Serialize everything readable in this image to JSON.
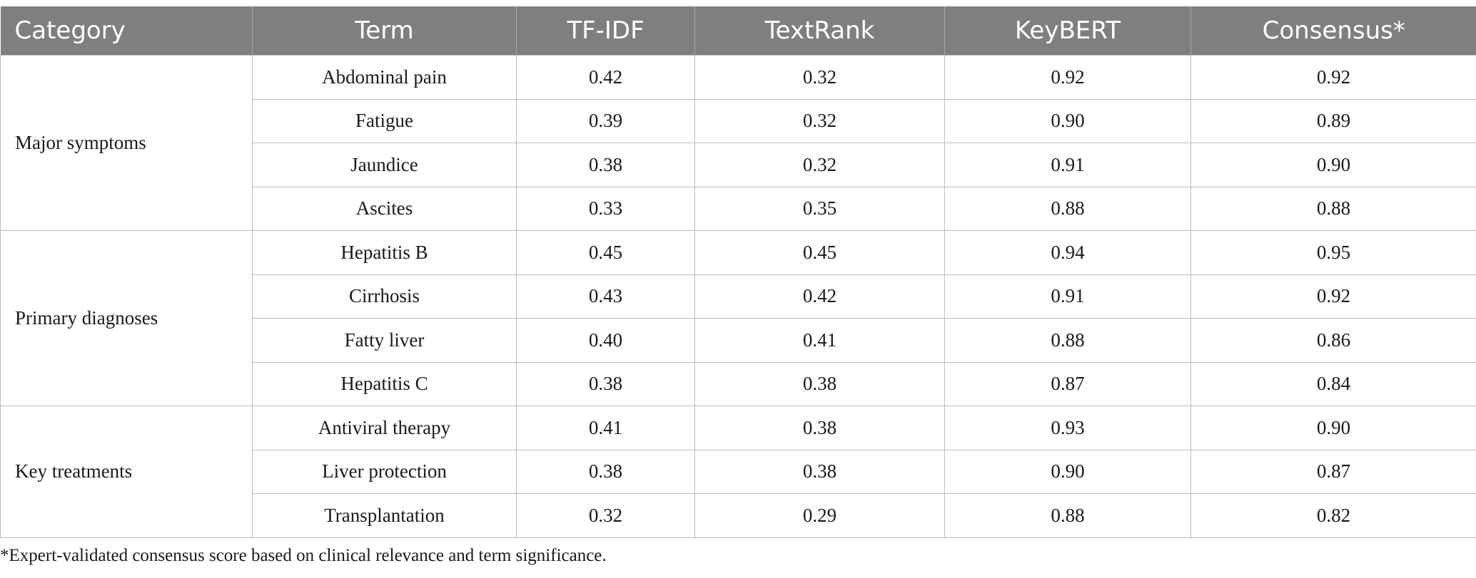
{
  "table": {
    "headers": [
      "Category",
      "Term",
      "TF-IDF",
      "TextRank",
      "KeyBERT",
      "Consensus*"
    ],
    "groups": [
      {
        "category": "Major symptoms",
        "rows": [
          [
            "Abdominal pain",
            "0.42",
            "0.32",
            "0.92",
            "0.92"
          ],
          [
            "Fatigue",
            "0.39",
            "0.32",
            "0.90",
            "0.89"
          ],
          [
            "Jaundice",
            "0.38",
            "0.32",
            "0.91",
            "0.90"
          ],
          [
            "Ascites",
            "0.33",
            "0.35",
            "0.88",
            "0.88"
          ]
        ]
      },
      {
        "category": "Primary diagnoses",
        "rows": [
          [
            "Hepatitis B",
            "0.45",
            "0.45",
            "0.94",
            "0.95"
          ],
          [
            "Cirrhosis",
            "0.43",
            "0.42",
            "0.91",
            "0.92"
          ],
          [
            "Fatty liver",
            "0.40",
            "0.41",
            "0.88",
            "0.86"
          ],
          [
            "Hepatitis C",
            "0.38",
            "0.38",
            "0.87",
            "0.84"
          ]
        ]
      },
      {
        "category": "Key treatments",
        "rows": [
          [
            "Antiviral therapy",
            "0.41",
            "0.38",
            "0.93",
            "0.90"
          ],
          [
            "Liver protection",
            "0.38",
            "0.38",
            "0.90",
            "0.87"
          ],
          [
            "Transplantation",
            "0.32",
            "0.29",
            "0.88",
            "0.82"
          ]
        ]
      }
    ]
  },
  "footnote": "*Expert-validated consensus score based on clinical relevance and term significance.",
  "colors": {
    "header_bg": "#7f7f7f",
    "header_text": "#ffffff",
    "grid": "#bcbcbc"
  }
}
